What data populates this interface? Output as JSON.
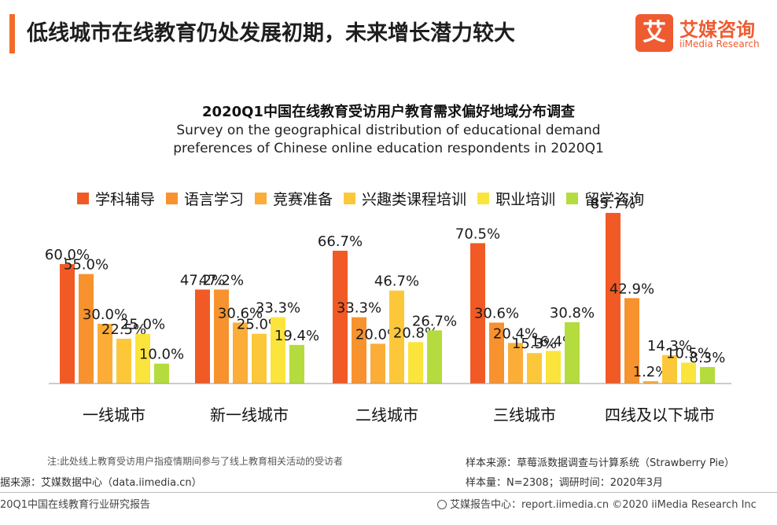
{
  "header": {
    "title": "低线城市在线教育仍处发展初期，未来增长潜力较大",
    "logo_box": "艾",
    "logo_cn": "艾媒咨询",
    "logo_en": "iiMedia Research",
    "accent_color": "#f26b2a"
  },
  "chart_data": {
    "type": "bar",
    "title": "2020Q1中国在线教育受访用户教育需求偏好地域分布调查",
    "subtitle": "Survey on the geographical distribution of educational demand preferences of Chinese online education respondents in 2020Q1",
    "categories": [
      "一线城市",
      "新一线城市",
      "二线城市",
      "三线城市",
      "四线及以下城市"
    ],
    "ylim": [
      0,
      90
    ],
    "legend_position": "top",
    "grid": false,
    "value_suffix": "%",
    "series": [
      {
        "name": "学科辅导",
        "color": "#f15a24",
        "values": [
          60.0,
          47.2,
          66.7,
          70.5,
          85.7
        ]
      },
      {
        "name": "语言学习",
        "color": "#f7922e",
        "values": [
          55.0,
          47.2,
          33.3,
          30.6,
          42.9
        ]
      },
      {
        "name": "竞赛准备",
        "color": "#fbad38",
        "values": [
          30.0,
          30.6,
          20.0,
          20.4,
          1.2
        ]
      },
      {
        "name": "兴趣类课程培训",
        "color": "#fcc83a",
        "values": [
          22.5,
          25.0,
          46.7,
          15.3,
          14.3
        ]
      },
      {
        "name": "职业培训",
        "color": "#fbe43c",
        "values": [
          25.0,
          33.3,
          20.8,
          16.4,
          10.5
        ]
      },
      {
        "name": "留学咨询",
        "color": "#b5dc3e",
        "values": [
          10.0,
          19.4,
          26.7,
          30.8,
          8.3
        ]
      }
    ]
  },
  "notes": {
    "note": "注:此处线上教育受访用户指疫情期间参与了线上教育相关活动的受访者",
    "source_left": "据来源：艾媒数据中心（data.iimedia.cn）",
    "sample_source": "样本来源：草莓派数据调查与计算系统（Strawberry Pie）",
    "sample_size": "样本量：N=2308；调研时间：2020年3月"
  },
  "footer": {
    "left": "20Q1中国在线教育行业研究报告",
    "right": "艾媒报告中心：report.iimedia.cn  ©2020  iiMedia Research  Inc"
  }
}
